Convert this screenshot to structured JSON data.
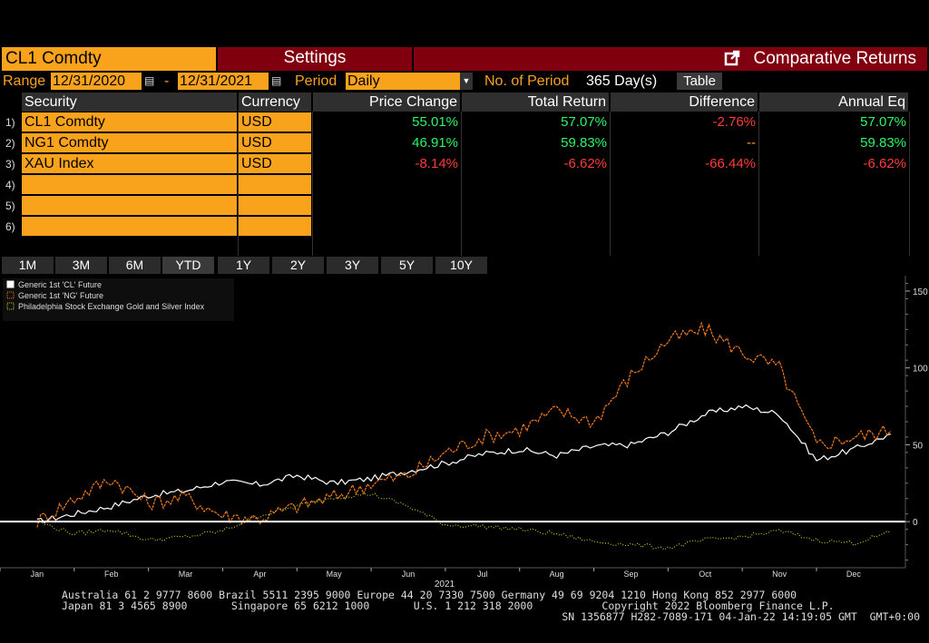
{
  "topbar": {
    "security": "CL1 Comdty",
    "settings_label": "Settings",
    "title": "Comparative Returns"
  },
  "range": {
    "range_label": "Range",
    "start": "12/31/2020",
    "dash": "-",
    "end": "12/31/2021",
    "period_label": "Period",
    "period_value": "Daily",
    "num_period_label": "No. of Period",
    "num_period_value": "365 Day(s)",
    "table_label": "Table"
  },
  "table": {
    "headers": [
      "Security",
      "Currency",
      "Price Change",
      "Total Return",
      "Difference",
      "Annual Eq"
    ],
    "rows": [
      {
        "num": "1)",
        "security": "CL1 Comdty",
        "currency": "USD",
        "price_change": "55.01%",
        "total_return": "57.07%",
        "difference": "-2.76%",
        "annual_eq": "57.07%"
      },
      {
        "num": "2)",
        "security": "NG1 Comdty",
        "currency": "USD",
        "price_change": "46.91%",
        "total_return": "59.83%",
        "difference": "--",
        "annual_eq": "59.83%"
      },
      {
        "num": "3)",
        "security": "XAU Index",
        "currency": "USD",
        "price_change": "-8.14%",
        "total_return": "-6.62%",
        "difference": "-66.44%",
        "annual_eq": "-6.62%"
      },
      {
        "num": "4)",
        "security": "",
        "currency": "",
        "price_change": "",
        "total_return": "",
        "difference": "",
        "annual_eq": ""
      },
      {
        "num": "5)",
        "security": "",
        "currency": "",
        "price_change": "",
        "total_return": "",
        "difference": "",
        "annual_eq": ""
      },
      {
        "num": "6)",
        "security": "",
        "currency": "",
        "price_change": "",
        "total_return": "",
        "difference": "",
        "annual_eq": ""
      }
    ]
  },
  "periods": [
    "1M",
    "3M",
    "6M",
    "YTD",
    "1Y",
    "2Y",
    "3Y",
    "5Y",
    "10Y"
  ],
  "chart_data": {
    "type": "line",
    "title": "",
    "xlabel": "2021",
    "ylabel": "",
    "x_ticks": [
      "Jan",
      "Feb",
      "Mar",
      "Apr",
      "May",
      "Jun",
      "Jul",
      "Aug",
      "Sep",
      "Oct",
      "Nov",
      "Dec"
    ],
    "y_ticks": [
      0,
      50,
      100,
      150
    ],
    "ylim": [
      -30,
      160
    ],
    "legend_position": "top-left",
    "series": [
      {
        "name": "Generic 1st 'CL' Future",
        "color": "#ffffff",
        "style": "solid",
        "x": [
          0,
          0.5,
          1,
          1.5,
          2,
          2.5,
          3,
          3.5,
          4,
          4.5,
          5,
          5.5,
          6,
          6.5,
          7,
          7.5,
          8,
          8.5,
          9,
          9.5,
          10,
          10.5,
          11,
          11.5
        ],
        "y": [
          0,
          5,
          10,
          17,
          20,
          26,
          24,
          30,
          25,
          28,
          33,
          38,
          44,
          47,
          43,
          49,
          50,
          58,
          70,
          75,
          70,
          40,
          47,
          57
        ]
      },
      {
        "name": "Generic 1st 'NG' Future",
        "color": "#f07a1a",
        "style": "dashed",
        "x": [
          0,
          0.5,
          1,
          1.5,
          2,
          2.5,
          3,
          3.5,
          4,
          4.5,
          5,
          5.5,
          6,
          6.5,
          7,
          7.5,
          8,
          8.5,
          9,
          9.5,
          10,
          10.5,
          11,
          11.5
        ],
        "y": [
          0,
          15,
          28,
          12,
          16,
          4,
          2,
          10,
          16,
          25,
          30,
          45,
          55,
          60,
          72,
          65,
          95,
          118,
          125,
          110,
          100,
          50,
          55,
          59
        ]
      },
      {
        "name": "Philadelphia Stock Exchange Gold and Silver Index",
        "color": "#c8c820",
        "style": "dotted",
        "x": [
          0,
          0.5,
          1,
          1.5,
          2,
          2.5,
          3,
          3.5,
          4,
          4.5,
          5,
          5.5,
          6,
          6.5,
          7,
          7.5,
          8,
          8.5,
          9,
          9.5,
          10,
          10.5,
          11,
          11.5
        ],
        "y": [
          0,
          -8,
          -5,
          -12,
          -10,
          -6,
          4,
          10,
          16,
          18,
          10,
          -2,
          -3,
          -5,
          -8,
          -13,
          -15,
          -17,
          -12,
          -10,
          -6,
          -12,
          -14,
          -7
        ]
      }
    ]
  },
  "footer": {
    "line1": "Australia 61 2 9777 8600 Brazil 5511 2395 9000 Europe 44 20 7330 7500 Germany 49 69 9204 1210 Hong Kong 852 2977 6000",
    "line2": "Japan 81 3 4565 8900       Singapore 65 6212 1000       U.S. 1 212 318 2000           Copyright 2022 Bloomberg Finance L.P.",
    "line3": "SN 1356877 H282-7089-171 04-Jan-22 14:19:05 GMT  GMT+0:00"
  }
}
